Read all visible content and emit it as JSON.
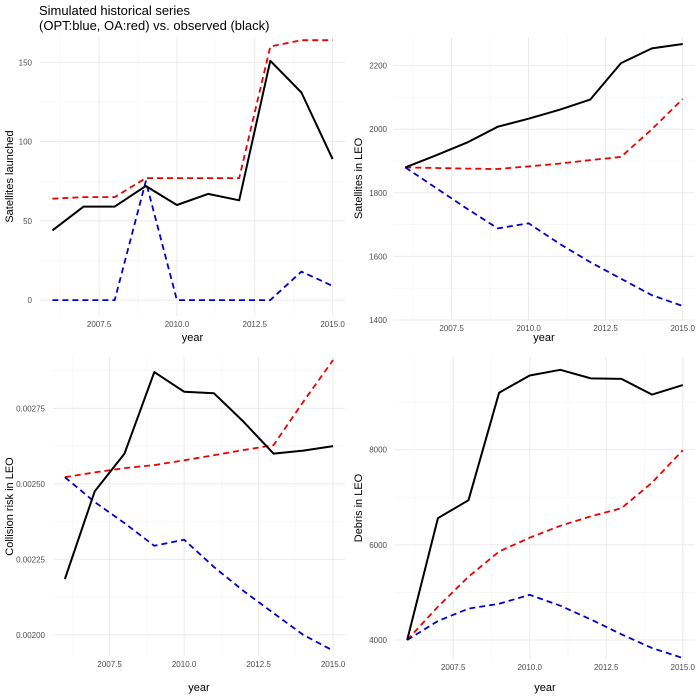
{
  "figure": {
    "title_line1": "Simulated historical series",
    "title_line2": "(OPT:blue, OA:red) vs. observed (black)"
  },
  "series_colors": {
    "observed": "#000000",
    "OPT": "#0000cc",
    "OA": "#ee0000"
  },
  "chart_data": [
    {
      "type": "line",
      "xlabel": "year",
      "ylabel": "Satellites launched",
      "xlim": [
        2005.6,
        2015.4
      ],
      "ylim": [
        -10,
        166
      ],
      "xticks": [
        2007.5,
        2010.0,
        2012.5,
        2015.0
      ],
      "xtick_labels": [
        "2007.5",
        "2010.0",
        "2012.5",
        "2015.0"
      ],
      "yticks": [
        0,
        50,
        100,
        150
      ],
      "ytick_labels": [
        "0",
        "50",
        "100",
        "150"
      ],
      "grid": true,
      "x": [
        2006,
        2007,
        2008,
        2009,
        2010,
        2011,
        2012,
        2013,
        2014,
        2015
      ],
      "series": [
        {
          "key": "observed",
          "dash": "solid",
          "values": [
            44,
            59,
            59,
            72,
            60,
            67,
            63,
            151,
            131,
            89
          ]
        },
        {
          "key": "OA",
          "dash": "dashed",
          "values": [
            64,
            65,
            65,
            77,
            77,
            77,
            77,
            160,
            164,
            164
          ]
        },
        {
          "key": "OPT",
          "dash": "dashed",
          "values": [
            0,
            0,
            0,
            75,
            0,
            0,
            0,
            0,
            18,
            9
          ]
        }
      ]
    },
    {
      "type": "line",
      "xlabel": "year",
      "ylabel": "Satellites in LEO",
      "xlim": [
        2005.6,
        2015.4
      ],
      "ylim": [
        1400,
        2290
      ],
      "xticks": [
        2007.5,
        2010.0,
        2012.5,
        2015.0
      ],
      "xtick_labels": [
        "2007.5",
        "2010.0",
        "2012.5",
        "2015.0"
      ],
      "yticks": [
        1400,
        1600,
        1800,
        2000,
        2200
      ],
      "ytick_labels": [
        "1400",
        "1600",
        "1800",
        "2000",
        "2200"
      ],
      "grid": true,
      "x": [
        2006,
        2007,
        2008,
        2009,
        2010,
        2011,
        2012,
        2013,
        2014,
        2015
      ],
      "series": [
        {
          "key": "observed",
          "dash": "solid",
          "values": [
            1880,
            1918,
            1958,
            2008,
            2033,
            2061,
            2093,
            2208,
            2254,
            2268
          ]
        },
        {
          "key": "OA",
          "dash": "dashed",
          "values": [
            1880,
            1878,
            1876,
            1875,
            1883,
            1892,
            1903,
            1913,
            2000,
            2095
          ]
        },
        {
          "key": "OPT",
          "dash": "dashed",
          "values": [
            1880,
            1815,
            1750,
            1688,
            1704,
            1640,
            1582,
            1530,
            1478,
            1444
          ]
        }
      ]
    },
    {
      "type": "line",
      "xlabel": "year",
      "ylabel": "Collision risk in LEO",
      "xlim": [
        2005.6,
        2015.4
      ],
      "ylim": [
        0.00193,
        0.00292
      ],
      "xticks": [
        2007.5,
        2010.0,
        2012.5,
        2015.0
      ],
      "xtick_labels": [
        "2007.5",
        "2010.0",
        "2012.5",
        "2015.0"
      ],
      "yticks": [
        0.002,
        0.00225,
        0.0025,
        0.00275
      ],
      "ytick_labels": [
        "0.00200",
        "0.00225",
        "0.00250",
        "0.00275"
      ],
      "grid": true,
      "x": [
        2006,
        2007,
        2008,
        2009,
        2010,
        2011,
        2012,
        2013,
        2014,
        2015
      ],
      "series": [
        {
          "key": "observed",
          "dash": "solid",
          "values": [
            0.002185,
            0.002475,
            0.0026,
            0.00287,
            0.002805,
            0.0028,
            0.002705,
            0.0026,
            0.00261,
            0.002625
          ]
        },
        {
          "key": "OA",
          "dash": "dashed",
          "values": [
            0.002522,
            0.002538,
            0.002552,
            0.002562,
            0.002578,
            0.002595,
            0.002612,
            0.002628,
            0.002772,
            0.00291
          ]
        },
        {
          "key": "OPT",
          "dash": "dashed",
          "values": [
            0.002522,
            0.00244,
            0.00237,
            0.002295,
            0.002315,
            0.002225,
            0.002145,
            0.002072,
            0.002,
            0.001948
          ]
        }
      ]
    },
    {
      "type": "line",
      "xlabel": "year",
      "ylabel": "Debris in LEO",
      "xlim": [
        2005.6,
        2015.4
      ],
      "ylim": [
        3600,
        9950
      ],
      "xticks": [
        2007.5,
        2010.0,
        2012.5,
        2015.0
      ],
      "xtick_labels": [
        "2007.5",
        "2010.0",
        "2012.5",
        "2015.0"
      ],
      "yticks": [
        4000,
        6000,
        8000
      ],
      "ytick_labels": [
        "4000",
        "6000",
        "8000"
      ],
      "grid": true,
      "x": [
        2006,
        2007,
        2008,
        2009,
        2010,
        2011,
        2012,
        2013,
        2014,
        2015
      ],
      "series": [
        {
          "key": "observed",
          "dash": "solid",
          "values": [
            4000,
            6560,
            6940,
            9200,
            9560,
            9680,
            9500,
            9490,
            9160,
            9360
          ]
        },
        {
          "key": "OA",
          "dash": "dashed",
          "values": [
            4000,
            4700,
            5330,
            5860,
            6150,
            6400,
            6600,
            6770,
            7310,
            7990
          ]
        },
        {
          "key": "OPT",
          "dash": "dashed",
          "values": [
            4000,
            4400,
            4660,
            4760,
            4950,
            4720,
            4430,
            4120,
            3830,
            3620
          ]
        }
      ]
    }
  ]
}
